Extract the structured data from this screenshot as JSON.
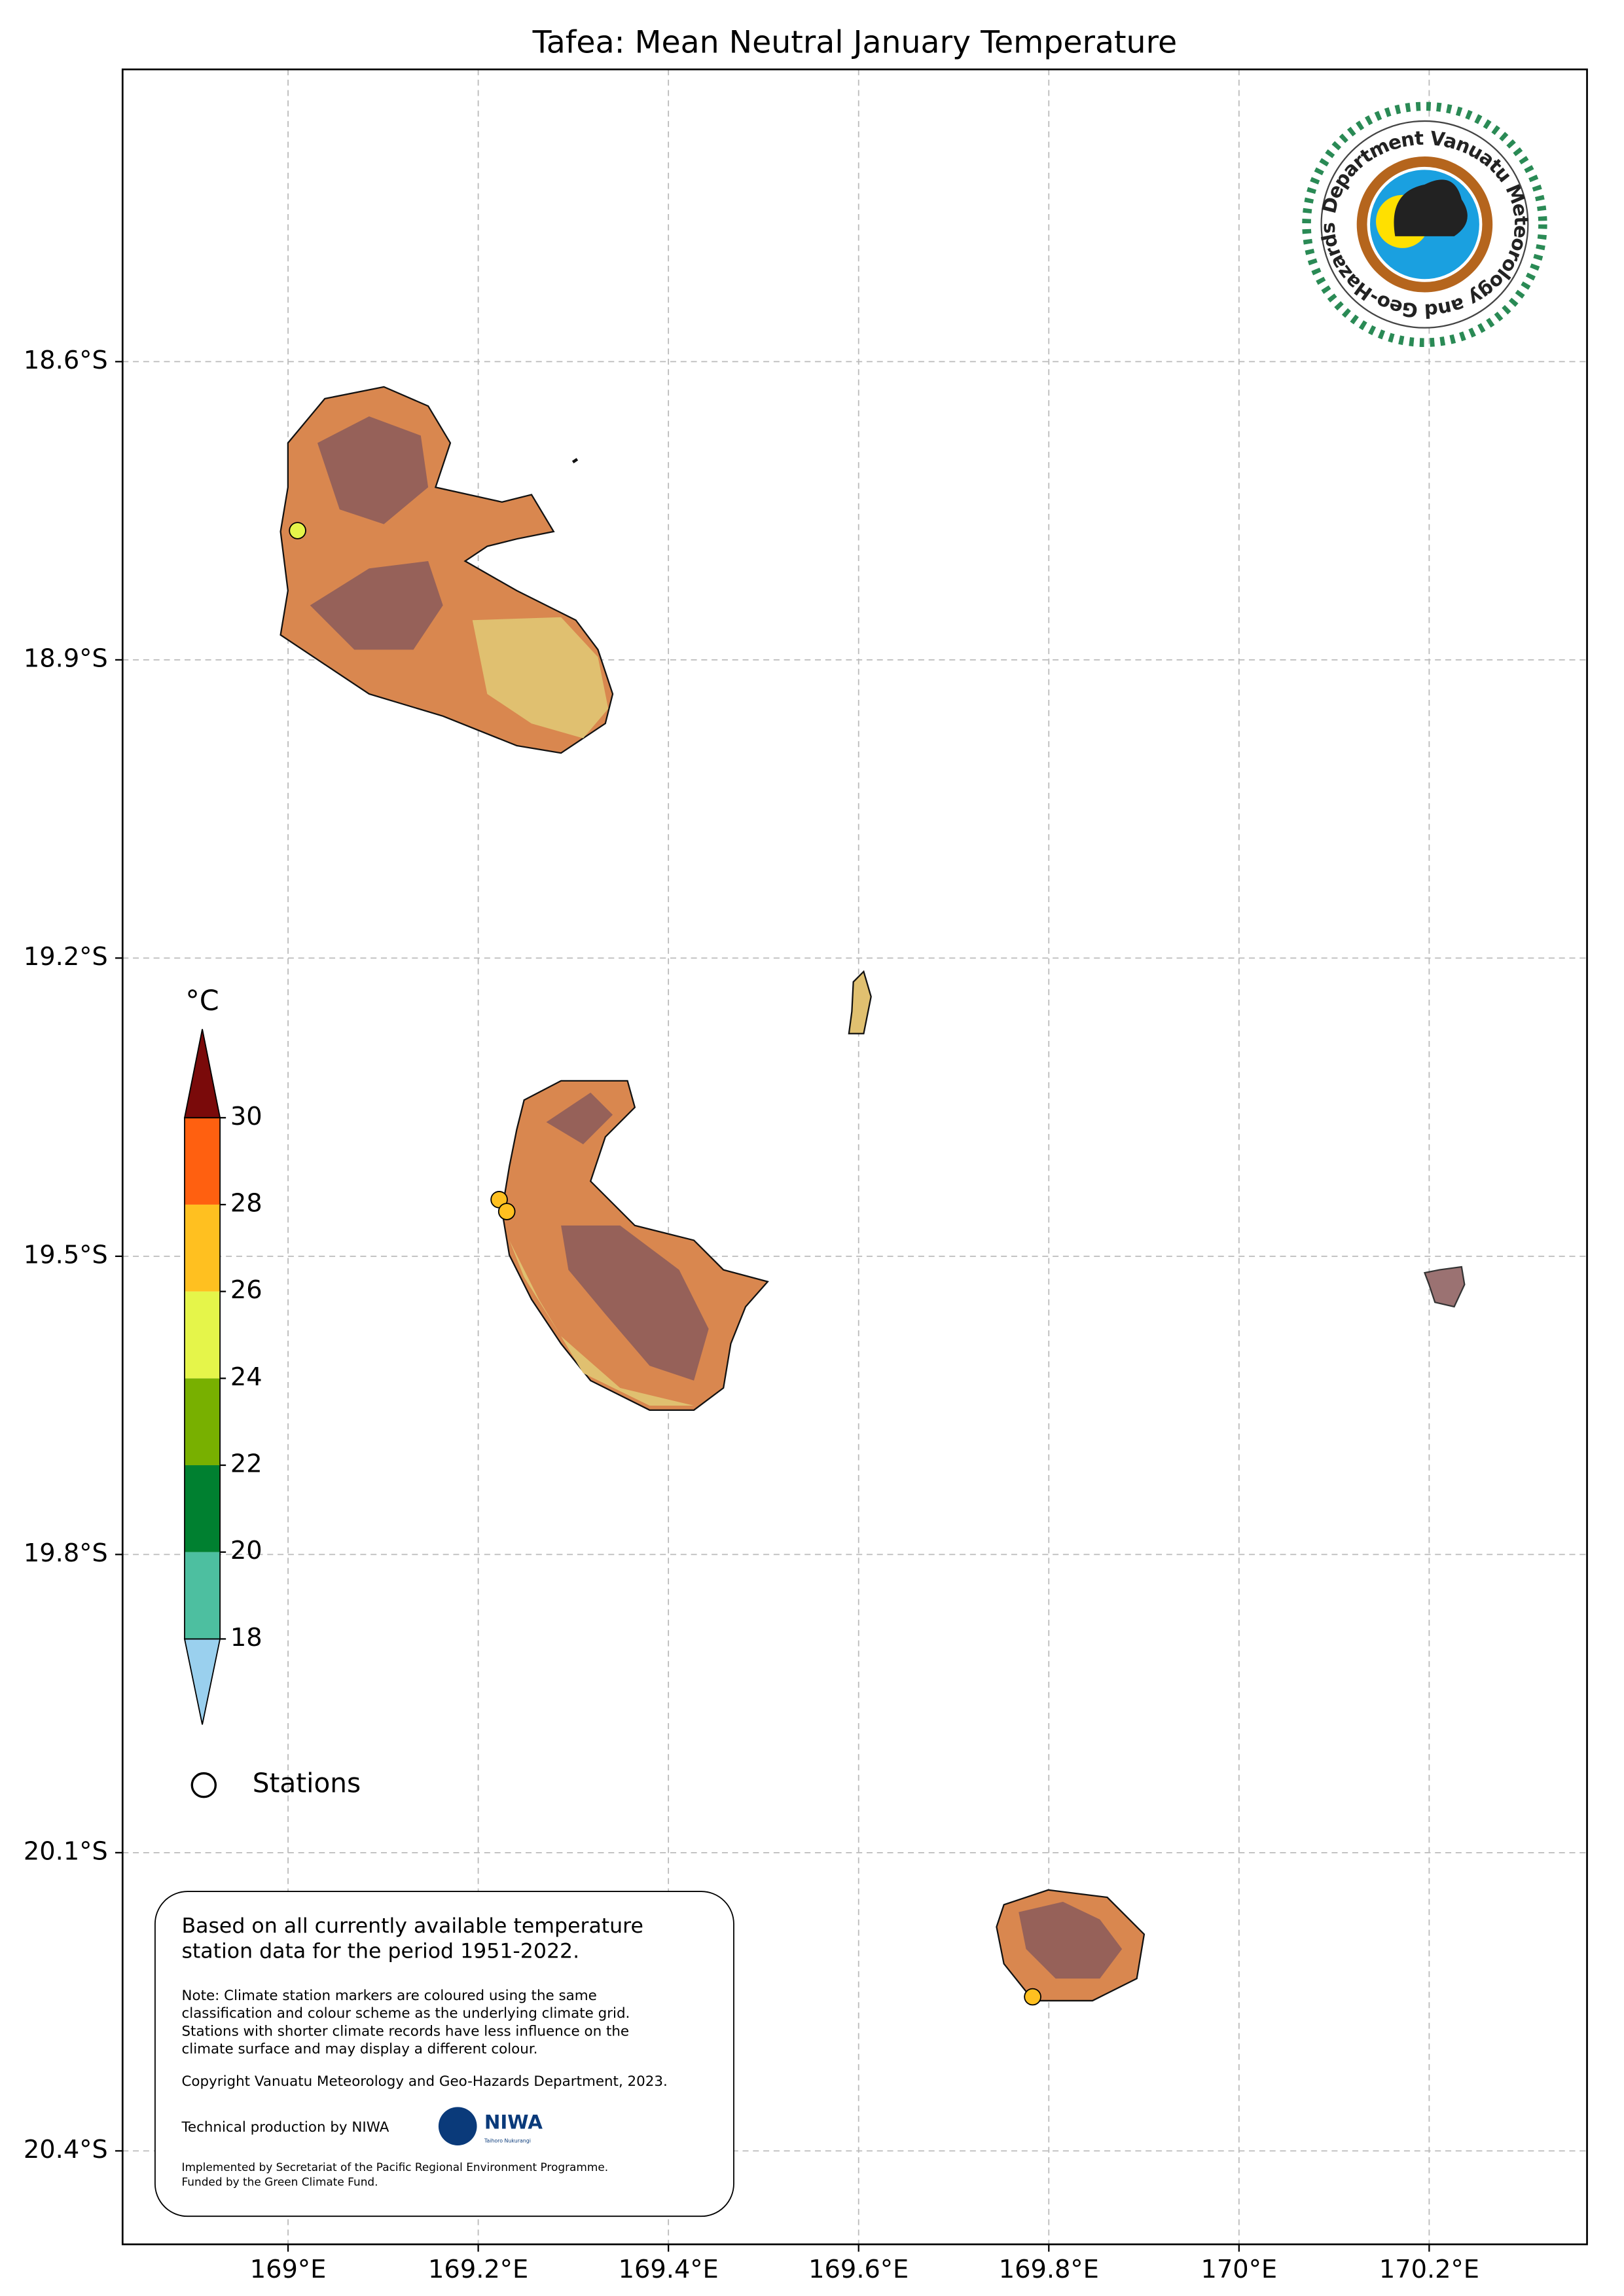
{
  "chart_data": {
    "type": "map",
    "title": "Tafea: Mean Neutral January Temperature",
    "xlim": [
      168.826,
      170.366
    ],
    "ylim": [
      -20.494,
      -18.306
    ],
    "xticks": [
      {
        "value": 169,
        "label": "169°E"
      },
      {
        "value": 169.2,
        "label": "169.2°E"
      },
      {
        "value": 169.4,
        "label": "169.4°E"
      },
      {
        "value": 169.6,
        "label": "169.6°E"
      },
      {
        "value": 169.8,
        "label": "169.8°E"
      },
      {
        "value": 170,
        "label": "170°E"
      },
      {
        "value": 170.2,
        "label": "170.2°E"
      }
    ],
    "yticks": [
      {
        "value": -18.6,
        "label": "18.6°S"
      },
      {
        "value": -18.9,
        "label": "18.9°S"
      },
      {
        "value": -19.2,
        "label": "19.2°S"
      },
      {
        "value": -19.5,
        "label": "19.5°S"
      },
      {
        "value": -19.8,
        "label": "19.8°S"
      },
      {
        "value": -20.1,
        "label": "20.1°S"
      },
      {
        "value": -20.4,
        "label": "20.4°S"
      }
    ],
    "grid": true,
    "colorbar": {
      "unit": "°C",
      "ticks": [
        18,
        20,
        22,
        24,
        26,
        28,
        30
      ],
      "colors": [
        "#4dbfa0",
        "#008030",
        "#78b000",
        "#e5f54a",
        "#ffc020",
        "#ff6010"
      ],
      "under_color": "#9ad0ee",
      "over_color": "#7a0a0a"
    },
    "stations": {
      "name": "Stations",
      "x": [
        169.01,
        169.222,
        169.23,
        169.783
      ],
      "y": [
        -18.77,
        -19.443,
        -19.455,
        -20.245
      ],
      "colors": [
        "#e5f54a",
        "#ffc020",
        "#ffc020",
        "#ffc020"
      ]
    }
  },
  "logo": {
    "text": "Department Vanuatu Meteorology and Geo-Hazards"
  },
  "note": {
    "lead": [
      "Based on all currently available temperature",
      "station data for the period 1951-2022."
    ],
    "detail": [
      "Note: Climate station markers are coloured using the same",
      "classification and colour scheme as the underlying climate grid.",
      "Stations with shorter climate records have less influence on the",
      "climate surface and may display a different colour."
    ],
    "copyright": "Copyright Vanuatu Meteorology and Geo-Hazards Department, 2023.",
    "production": "Technical production by NIWA",
    "niwa": "NIWA",
    "niwa_sub": "Taihoro Nukurangi",
    "funding": [
      "Implemented by Secretariat of the Pacific Regional Environment Programme.",
      "Funded by the Green Climate Fund."
    ]
  }
}
